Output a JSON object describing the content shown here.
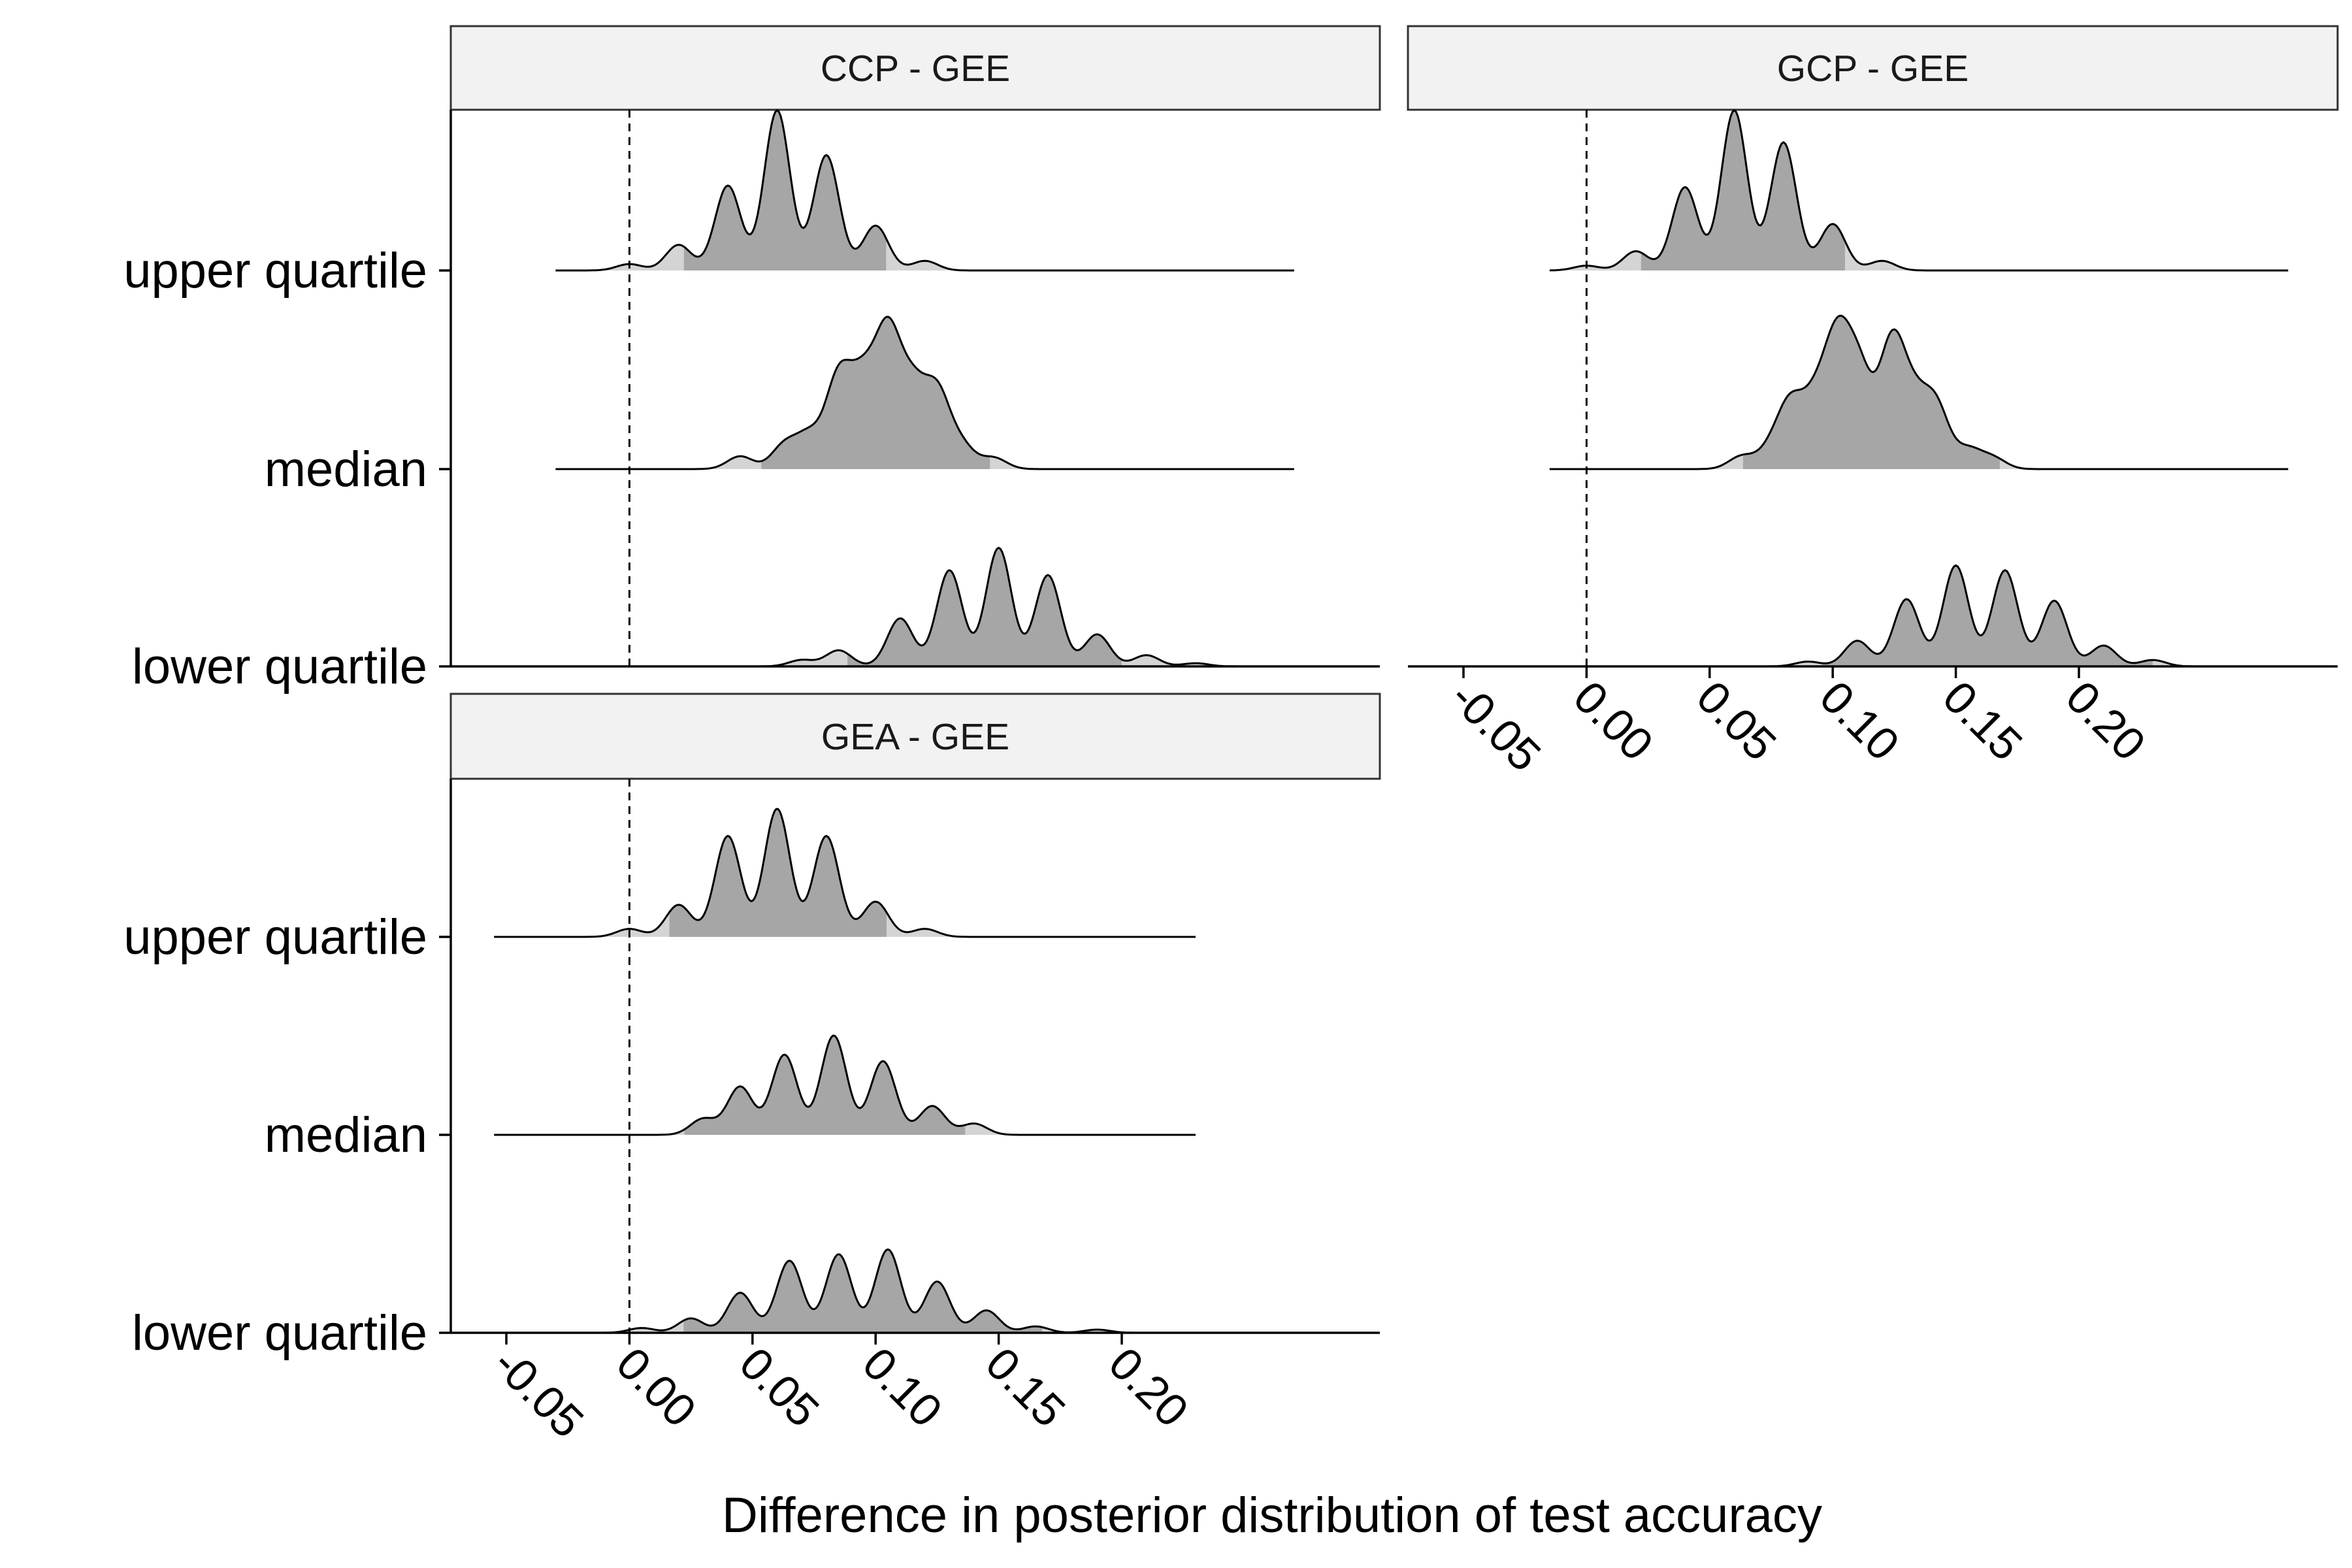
{
  "chart_data": {
    "type": "ridgeline",
    "xlabel": "Difference in posterior distribution of test accuracy",
    "ylabel": "",
    "xticks": [
      -0.05,
      0.0,
      0.05,
      0.1,
      0.15,
      0.2
    ],
    "xtick_labels": [
      "-0.05",
      "0.00",
      "0.05",
      "0.10",
      "0.15",
      "0.20"
    ],
    "categories": [
      "upper quartile",
      "median",
      "lower quartile"
    ],
    "reference_line": {
      "x": 0.0,
      "style": "dashed"
    },
    "colors": {
      "interval": "#a6a6a6",
      "tail": "#d4d4d4",
      "outline": "#000000",
      "strip": "#f2f2f2"
    },
    "panels": [
      {
        "title": "CCP - GEE",
        "ridges": [
          {
            "category": "upper quartile",
            "range": [
              -0.03,
              0.27
            ],
            "interval": [
              0.022,
              0.105
            ],
            "peaks": [
              [
                0.0,
                0.04
              ],
              [
                0.02,
                0.16
              ],
              [
                0.04,
                0.53
              ],
              [
                0.06,
                1.0
              ],
              [
                0.08,
                0.72
              ],
              [
                0.1,
                0.28
              ],
              [
                0.12,
                0.06
              ]
            ]
          },
          {
            "category": "median",
            "range": [
              -0.03,
              0.27
            ],
            "interval": [
              0.053,
              0.147
            ],
            "peaks": [
              [
                0.045,
                0.08
              ],
              [
                0.063,
                0.15
              ],
              [
                0.073,
                0.2
              ],
              [
                0.085,
                0.56
              ],
              [
                0.095,
                0.5
              ],
              [
                0.105,
                0.8
              ],
              [
                0.115,
                0.46
              ],
              [
                0.125,
                0.46
              ],
              [
                0.135,
                0.14
              ],
              [
                0.148,
                0.07
              ]
            ]
          },
          {
            "category": "lower quartile",
            "range": [
              -0.03,
              0.27
            ],
            "interval": [
              0.088,
              0.2
            ],
            "peaks": [
              [
                0.07,
                0.04
              ],
              [
                0.085,
                0.1
              ],
              [
                0.11,
                0.3
              ],
              [
                0.13,
                0.6
              ],
              [
                0.15,
                0.74
              ],
              [
                0.17,
                0.57
              ],
              [
                0.19,
                0.2
              ],
              [
                0.21,
                0.07
              ],
              [
                0.23,
                0.02
              ]
            ]
          }
        ]
      },
      {
        "title": "GCP - GEE",
        "ridges": [
          {
            "category": "upper quartile",
            "range": [
              -0.015,
              0.285
            ],
            "interval": [
              0.022,
              0.105
            ],
            "peaks": [
              [
                0.0,
                0.03
              ],
              [
                0.02,
                0.12
              ],
              [
                0.04,
                0.52
              ],
              [
                0.06,
                1.0
              ],
              [
                0.08,
                0.8
              ],
              [
                0.1,
                0.29
              ],
              [
                0.12,
                0.06
              ]
            ]
          },
          {
            "category": "median",
            "range": [
              -0.015,
              0.285
            ],
            "interval": [
              0.063,
              0.168
            ],
            "peaks": [
              [
                0.063,
                0.08
              ],
              [
                0.075,
                0.12
              ],
              [
                0.083,
                0.38
              ],
              [
                0.093,
                0.38
              ],
              [
                0.102,
                0.74
              ],
              [
                0.111,
                0.56
              ],
              [
                0.124,
                0.76
              ],
              [
                0.133,
                0.36
              ],
              [
                0.142,
                0.38
              ],
              [
                0.155,
                0.12
              ],
              [
                0.165,
                0.07
              ]
            ]
          },
          {
            "category": "lower quartile",
            "range": [
              -0.015,
              0.285
            ],
            "interval": [
              0.095,
              0.23
            ],
            "peaks": [
              [
                0.09,
                0.03
              ],
              [
                0.11,
                0.16
              ],
              [
                0.13,
                0.42
              ],
              [
                0.15,
                0.63
              ],
              [
                0.17,
                0.6
              ],
              [
                0.19,
                0.41
              ],
              [
                0.21,
                0.13
              ],
              [
                0.23,
                0.04
              ]
            ]
          }
        ]
      },
      {
        "title": "GEA - GEE",
        "ridges": [
          {
            "category": "upper quartile",
            "range": [
              -0.055,
              0.23
            ],
            "interval": [
              0.016,
              0.105
            ],
            "peaks": [
              [
                0.0,
                0.05
              ],
              [
                0.02,
                0.2
              ],
              [
                0.04,
                0.63
              ],
              [
                0.06,
                0.8
              ],
              [
                0.08,
                0.63
              ],
              [
                0.1,
                0.22
              ],
              [
                0.12,
                0.05
              ]
            ]
          },
          {
            "category": "median",
            "range": [
              -0.055,
              0.23
            ],
            "interval": [
              0.022,
              0.137
            ],
            "peaks": [
              [
                0.03,
                0.1
              ],
              [
                0.045,
                0.3
              ],
              [
                0.063,
                0.5
              ],
              [
                0.083,
                0.62
              ],
              [
                0.103,
                0.46
              ],
              [
                0.123,
                0.18
              ],
              [
                0.14,
                0.07
              ]
            ]
          },
          {
            "category": "lower quartile",
            "range": [
              -0.03,
              0.21
            ],
            "interval": [
              0.022,
              0.168
            ],
            "peaks": [
              [
                0.005,
                0.03
              ],
              [
                0.025,
                0.09
              ],
              [
                0.045,
                0.25
              ],
              [
                0.065,
                0.45
              ],
              [
                0.085,
                0.49
              ],
              [
                0.105,
                0.52
              ],
              [
                0.125,
                0.32
              ],
              [
                0.145,
                0.14
              ],
              [
                0.165,
                0.04
              ],
              [
                0.19,
                0.02
              ]
            ]
          }
        ]
      }
    ]
  }
}
